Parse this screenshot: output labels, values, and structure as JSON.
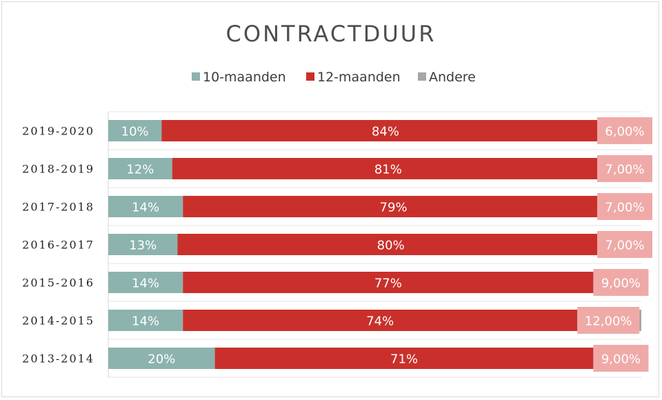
{
  "chart_data": {
    "type": "bar",
    "orientation": "horizontal",
    "stacked": true,
    "title": "CONTRACTDUUR",
    "legend_position": "top",
    "categories": [
      "2019-2020",
      "2018-2019",
      "2017-2018",
      "2016-2017",
      "2015-2016",
      "2014-2015",
      "2013-2014"
    ],
    "series": [
      {
        "name": "10-maanden",
        "color": "#8cb3ad",
        "values": [
          10,
          12,
          14,
          13,
          14,
          14,
          20
        ],
        "labels": [
          "10%",
          "12%",
          "14%",
          "13%",
          "14%",
          "14%",
          "20%"
        ]
      },
      {
        "name": "12-maanden",
        "color": "#c9302c",
        "values": [
          84,
          81,
          79,
          80,
          77,
          74,
          71
        ],
        "labels": [
          "84%",
          "81%",
          "79%",
          "80%",
          "77%",
          "74%",
          "71%"
        ]
      },
      {
        "name": "Andere",
        "color": "#a6a6a6",
        "label_color": "#efaaa8",
        "values": [
          6,
          7,
          7,
          7,
          9,
          12,
          9
        ],
        "labels": [
          "6,00%",
          "7,00%",
          "7,00%",
          "7,00%",
          "9,00%",
          "12,00%",
          "9,00%"
        ]
      }
    ],
    "xlim": [
      0,
      100
    ],
    "grid": "horizontal"
  }
}
